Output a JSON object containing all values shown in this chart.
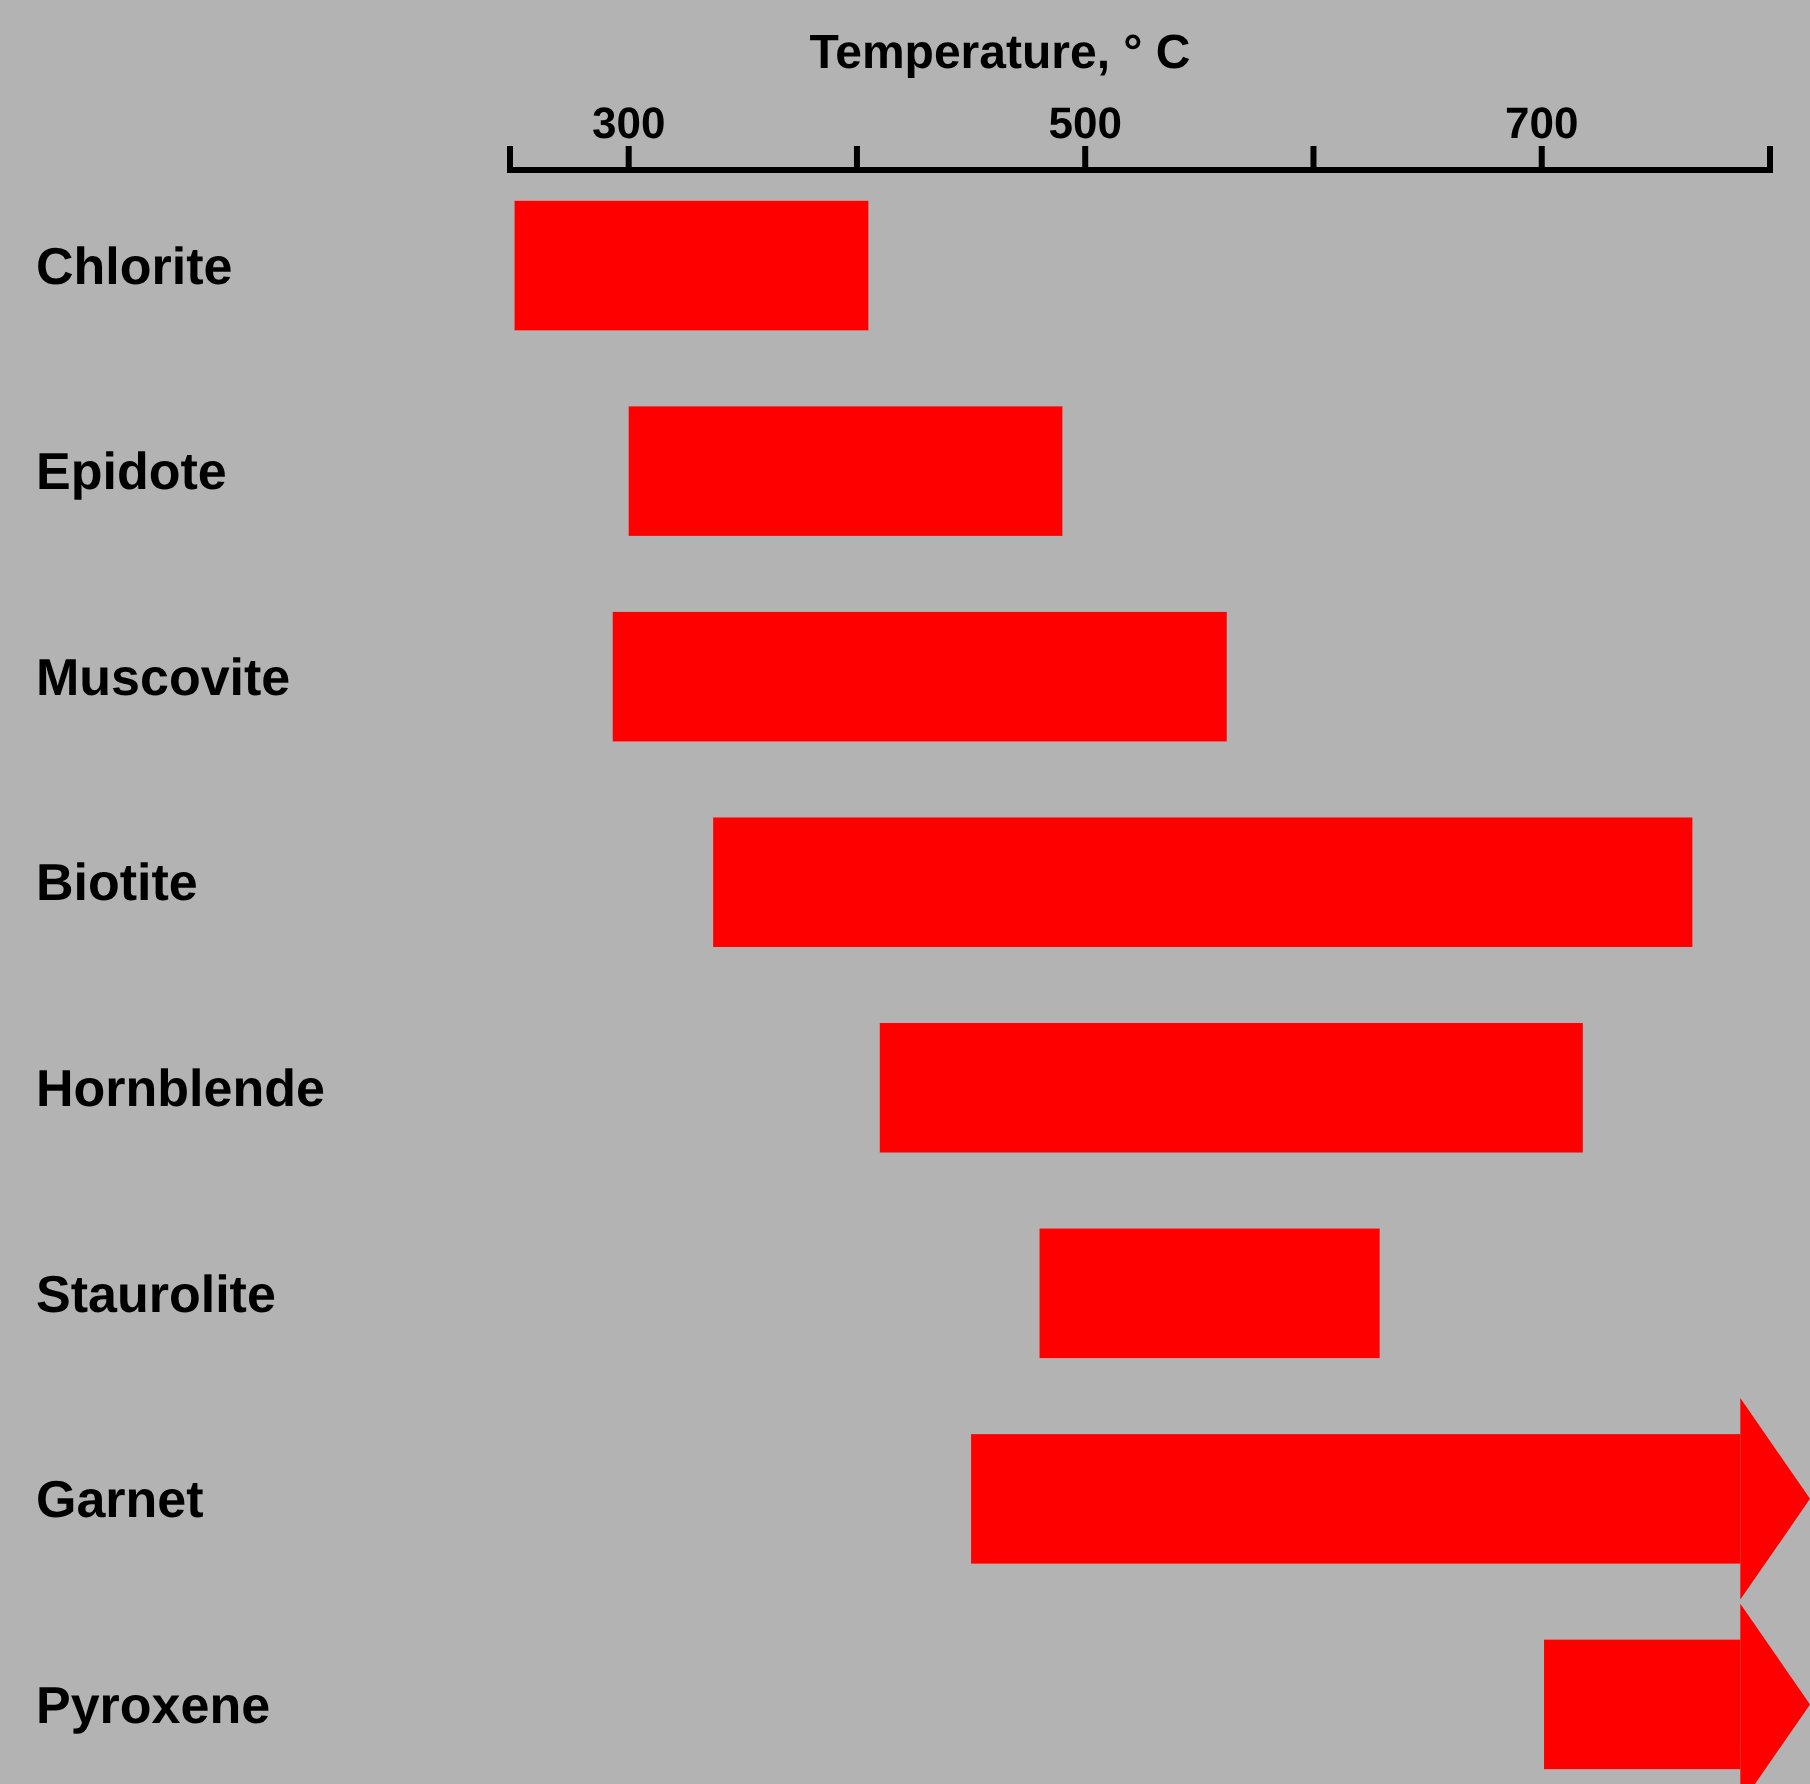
{
  "chart_data": {
    "type": "bar",
    "orientation": "horizontal",
    "xlabel": "Temperature, ° C",
    "categories": [
      "Chlorite",
      "Epidote",
      "Muscovite",
      "Biotite",
      "Hornblende",
      "Staurolite",
      "Garnet",
      "Pyroxene"
    ],
    "base": [
      250,
      300,
      293,
      337,
      410,
      480,
      450,
      701
    ],
    "values": [
      155,
      190,
      269,
      429,
      308,
      149,
      337,
      86
    ],
    "color": "#ff0000",
    "xlim": [
      248,
      800
    ],
    "xticks": [
      300,
      {
        "value": 400,
        "label": null
      },
      500,
      {
        "value": 600,
        "label": null
      },
      700,
      {
        "value": 800,
        "label": null
      }
    ],
    "grid": false
  }
}
